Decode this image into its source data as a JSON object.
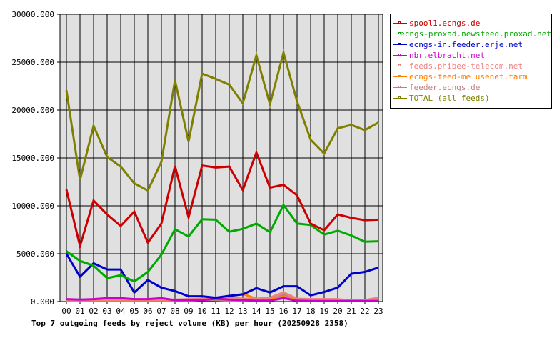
{
  "chart_data": {
    "type": "line",
    "title": "Top 7 outgoing feeds by reject volume (KB) per hour (20250928 2358)",
    "xlabel": "",
    "ylabel": "",
    "ylim": [
      0,
      30000
    ],
    "yticks": [
      "0.000",
      "5000.000",
      "10000.000",
      "15000.000",
      "20000.000",
      "25000.000",
      "30000.000"
    ],
    "grid": true,
    "legend_position": "right",
    "categories": [
      "00",
      "01",
      "02",
      "03",
      "04",
      "05",
      "06",
      "07",
      "08",
      "09",
      "10",
      "11",
      "12",
      "13",
      "14",
      "15",
      "16",
      "17",
      "18",
      "19",
      "20",
      "21",
      "22",
      "23"
    ],
    "series": [
      {
        "name": "spool1.ecngs.de",
        "color": "#cc0000",
        "values": [
          11700,
          5800,
          10550,
          9100,
          7900,
          9400,
          6150,
          8150,
          14150,
          8800,
          14200,
          14000,
          14100,
          11650,
          15550,
          11900,
          12200,
          11100,
          8150,
          7450,
          9100,
          8750,
          8500,
          8550
        ]
      },
      {
        "name": "ecngs-proxad.newsfeed.proxad.net",
        "color": "#00aa00",
        "values": [
          5250,
          4250,
          3750,
          2450,
          2750,
          2100,
          3100,
          4900,
          7550,
          6800,
          8600,
          8550,
          7300,
          7600,
          8150,
          7250,
          10100,
          8150,
          8000,
          7000,
          7400,
          6900,
          6250,
          6300
        ]
      },
      {
        "name": "ecngs-in.feeder.erje.net",
        "color": "#0000cc",
        "values": [
          5000,
          2600,
          4000,
          3350,
          3350,
          950,
          2250,
          1450,
          1100,
          550,
          550,
          400,
          600,
          750,
          1400,
          950,
          1600,
          1600,
          650,
          1000,
          1450,
          2900,
          3100,
          3550
        ]
      },
      {
        "name": "nbr.elbracht.net",
        "color": "#cc00cc",
        "values": [
          250,
          200,
          250,
          350,
          350,
          250,
          250,
          350,
          150,
          150,
          150,
          300,
          200,
          150,
          100,
          100,
          350,
          100,
          50,
          50,
          50,
          50,
          50,
          50
        ]
      },
      {
        "name": "feeds.phibee-telecom.net",
        "color": "#f08080",
        "values": [
          150,
          150,
          200,
          200,
          200,
          200,
          200,
          200,
          200,
          250,
          300,
          300,
          400,
          300,
          300,
          400,
          950,
          300,
          250,
          250,
          250,
          100,
          150,
          400
        ]
      },
      {
        "name": "ecngs-feed-me.usenet.farm",
        "color": "#ff8000",
        "values": [
          100,
          100,
          150,
          150,
          150,
          150,
          150,
          150,
          150,
          200,
          250,
          300,
          550,
          800,
          300,
          250,
          500,
          150,
          150,
          150,
          100,
          100,
          50,
          100
        ]
      },
      {
        "name": "feeder.ecngs.de",
        "color": "#c08080",
        "values": [
          50,
          50,
          50,
          50,
          50,
          50,
          50,
          50,
          50,
          100,
          150,
          150,
          100,
          100,
          150,
          150,
          700,
          200,
          100,
          100,
          150,
          100,
          150,
          250
        ]
      },
      {
        "name": "TOTAL (all feeds)",
        "color": "#808000",
        "values": [
          22050,
          12700,
          18350,
          15100,
          14100,
          12350,
          11600,
          14600,
          23100,
          16700,
          23800,
          23250,
          22650,
          20700,
          25700,
          20600,
          26000,
          20900,
          16900,
          15450,
          18100,
          18450,
          17900,
          18700
        ]
      }
    ]
  }
}
